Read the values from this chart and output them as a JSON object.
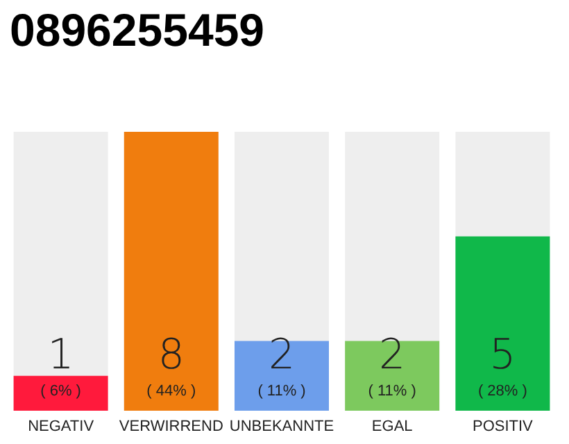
{
  "chart_data": {
    "type": "bar",
    "title": "0896255459",
    "categories": [
      "NEGATIV",
      "VERWIRREND",
      "UNBEKANNTE",
      "EGAL",
      "POSITIV"
    ],
    "values": [
      1,
      8,
      2,
      2,
      5
    ],
    "colors": [
      "#ff1a3c",
      "#f07d0e",
      "#6d9eeb",
      "#7dc95e",
      "#10b84a"
    ],
    "data_labels": true,
    "annotations": [
      "( 6% )",
      "( 44% )",
      "( 11% )",
      "( 11% )",
      "( 28% )"
    ],
    "tick_labels": "x"
  }
}
